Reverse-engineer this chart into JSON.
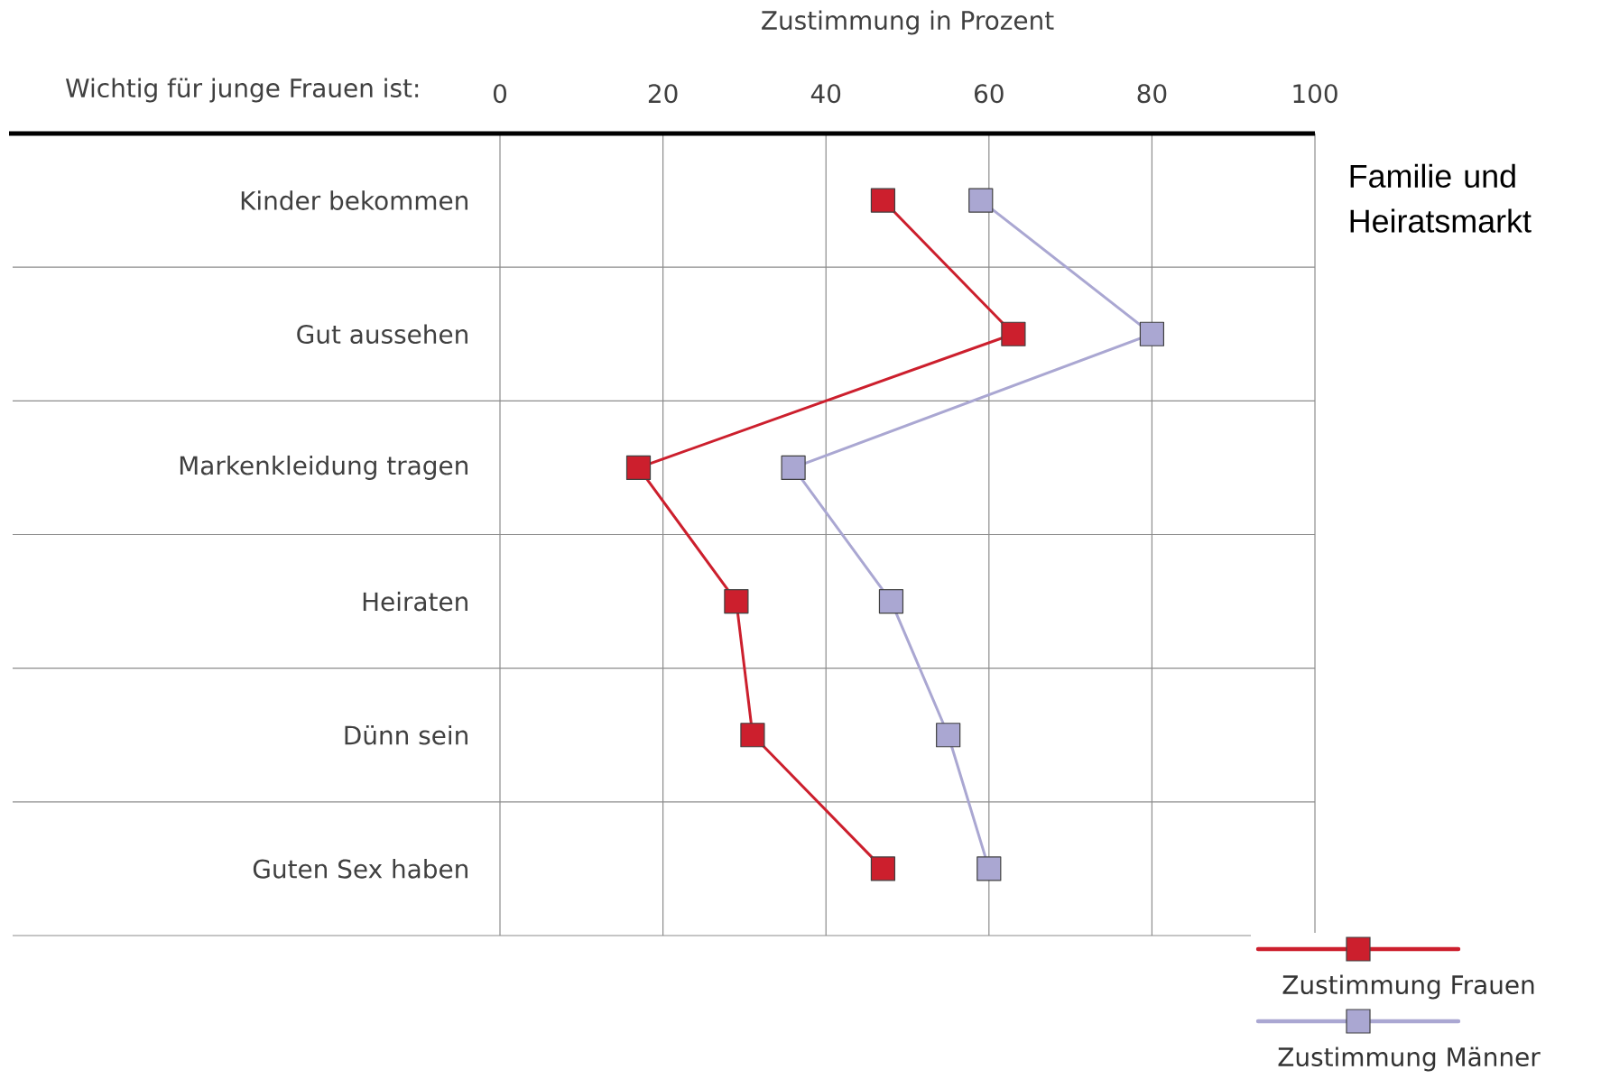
{
  "chart_data": {
    "type": "line",
    "orientation": "horizontal",
    "xlabel": "Zustimmung in Prozent",
    "ylabel": "Wichtig für junge Frauen ist:",
    "categories": [
      "Kinder bekommen",
      "Gut aussehen",
      "Markenkleidung tragen",
      "Heiraten",
      "Dünn sein",
      "Guten Sex haben"
    ],
    "series": [
      {
        "name": "Zustimmung Frauen",
        "color": "#cc1f2d",
        "values": [
          47,
          63,
          17,
          29,
          31,
          47
        ]
      },
      {
        "name": "Zustimmung Männer",
        "color": "#aaa7d2",
        "values": [
          59,
          80,
          36,
          48,
          55,
          60
        ]
      }
    ],
    "xlim": [
      0,
      100
    ],
    "xticks": [
      0,
      20,
      40,
      60,
      80,
      100
    ],
    "grid": true,
    "legend": "bottom right",
    "marker": "square",
    "line_style": "solid",
    "annotations": [
      "Familie und Heiratsmarkt"
    ]
  }
}
